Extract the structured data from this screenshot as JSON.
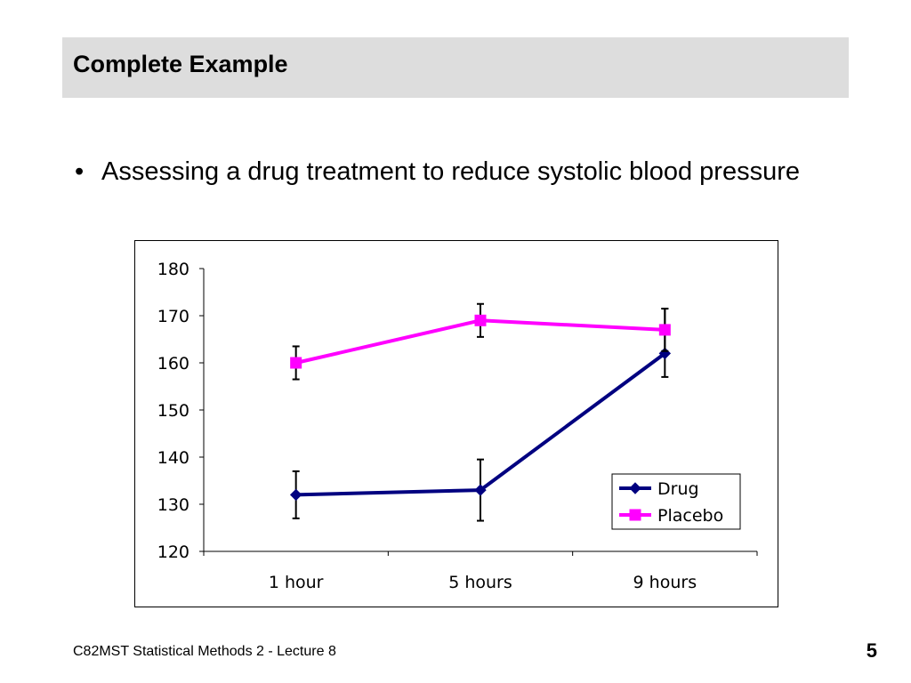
{
  "slide": {
    "title": "Complete Example",
    "bullet_symbol": "•",
    "bullet": "Assessing a drug treatment to reduce systolic blood pressure",
    "footer": "C82MST Statistical Methods 2 - Lecture 8",
    "page_number": "5"
  },
  "chart_data": {
    "type": "line",
    "categories": [
      "1 hour",
      "5 hours",
      "9 hours"
    ],
    "ylim": [
      120,
      180
    ],
    "y_ticks": [
      "120",
      "130",
      "140",
      "150",
      "160",
      "170",
      "180"
    ],
    "grid": false,
    "legend_position": "bottom-right-inside",
    "error_bars": true,
    "series": [
      {
        "name": "Drug",
        "color": "#000080",
        "marker": "diamond",
        "values": [
          132,
          133,
          162
        ],
        "error_low": [
          127,
          126.5,
          157
        ],
        "error_high": [
          137,
          139.5,
          171.5
        ]
      },
      {
        "name": "Placebo",
        "color": "#ff00ff",
        "marker": "square",
        "values": [
          160,
          169,
          167
        ],
        "error_low": [
          156.5,
          165.5,
          162.5
        ],
        "error_high": [
          163.5,
          172.5,
          171.5
        ]
      }
    ]
  }
}
